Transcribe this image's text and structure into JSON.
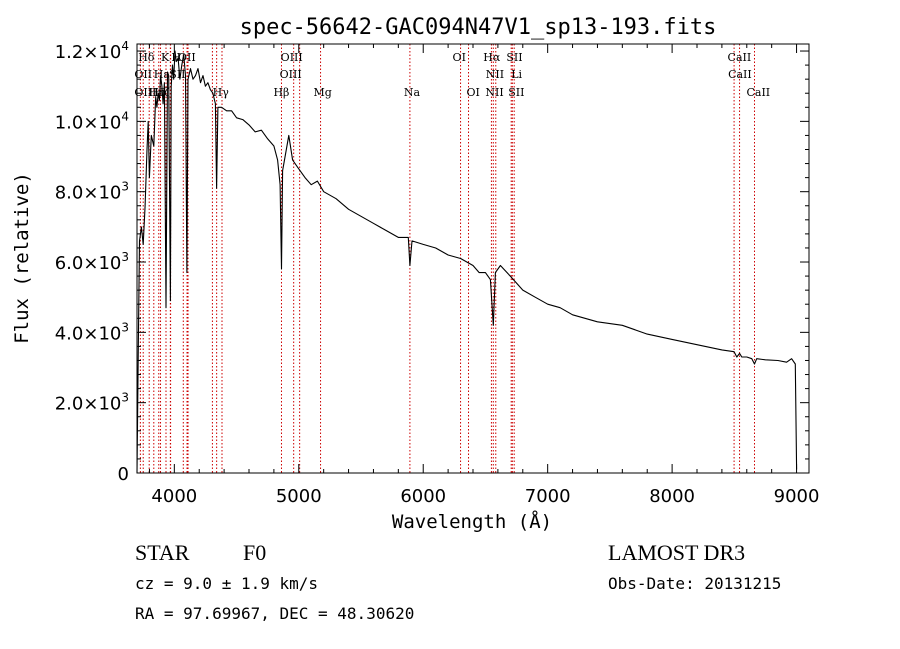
{
  "chart_data": {
    "type": "line",
    "title": "spec-56642-GAC094N47V1_sp13-193.fits",
    "xlabel": "Wavelength (Å)",
    "ylabel": "Flux (relative)",
    "xlim": [
      3700,
      9100
    ],
    "ylim": [
      0,
      12200
    ],
    "x_ticks": [
      4000,
      5000,
      6000,
      7000,
      8000,
      9000
    ],
    "x_tick_labels": [
      "4000",
      "5000",
      "6000",
      "7000",
      "8000",
      "9000"
    ],
    "y_ticks": [
      {
        "value": 0,
        "mantissa": "0",
        "exponent": ""
      },
      {
        "value": 2000,
        "mantissa": "2.0×10",
        "exponent": "3"
      },
      {
        "value": 4000,
        "mantissa": "4.0×10",
        "exponent": "3"
      },
      {
        "value": 6000,
        "mantissa": "6.0×10",
        "exponent": "3"
      },
      {
        "value": 8000,
        "mantissa": "8.0×10",
        "exponent": "3"
      },
      {
        "value": 10000,
        "mantissa": "1.0×10",
        "exponent": "4"
      },
      {
        "value": 12000,
        "mantissa": "1.2×10",
        "exponent": "4"
      }
    ],
    "series": [
      {
        "name": "spectrum",
        "x": [
          3700,
          3710,
          3720,
          3735,
          3750,
          3765,
          3780,
          3790,
          3800,
          3815,
          3835,
          3850,
          3860,
          3870,
          3880,
          3890,
          3900,
          3910,
          3920,
          3933,
          3945,
          3955,
          3968,
          3975,
          3985,
          3995,
          4005,
          4015,
          4030,
          4045,
          4060,
          4075,
          4090,
          4101,
          4110,
          4130,
          4150,
          4170,
          4190,
          4210,
          4230,
          4250,
          4270,
          4290,
          4310,
          4330,
          4340,
          4350,
          4380,
          4420,
          4460,
          4500,
          4550,
          4600,
          4650,
          4700,
          4750,
          4800,
          4830,
          4850,
          4861,
          4870,
          4890,
          4920,
          4950,
          4990,
          5050,
          5100,
          5150,
          5200,
          5250,
          5300,
          5400,
          5500,
          5600,
          5700,
          5800,
          5880,
          5893,
          5910,
          6000,
          6100,
          6200,
          6300,
          6400,
          6450,
          6500,
          6540,
          6563,
          6580,
          6620,
          6700,
          6800,
          6900,
          7000,
          7100,
          7200,
          7400,
          7600,
          7800,
          8000,
          8200,
          8400,
          8498,
          8520,
          8542,
          8560,
          8600,
          8640,
          8662,
          8680,
          8750,
          8850,
          8920,
          8960,
          8990,
          9000
        ],
        "values": [
          5,
          3300,
          6600,
          7000,
          6500,
          7600,
          9200,
          10000,
          8400,
          9600,
          9300,
          10700,
          10400,
          10800,
          10600,
          11300,
          11000,
          10500,
          11100,
          4700,
          11400,
          11300,
          4900,
          11000,
          11600,
          11200,
          12000,
          11700,
          11800,
          11200,
          11600,
          11900,
          11300,
          5700,
          11200,
          11500,
          11200,
          11300,
          11500,
          11100,
          11300,
          11000,
          11100,
          10900,
          10800,
          10500,
          8100,
          10400,
          10400,
          10300,
          10300,
          10100,
          10050,
          9900,
          9700,
          9750,
          9500,
          9300,
          8900,
          8200,
          5800,
          8600,
          9000,
          9600,
          8900,
          8700,
          8400,
          8200,
          8300,
          8000,
          7900,
          7800,
          7500,
          7300,
          7100,
          6900,
          6700,
          6700,
          5900,
          6600,
          6500,
          6400,
          6200,
          6100,
          5900,
          5700,
          5700,
          5500,
          4200,
          5700,
          5900,
          5600,
          5200,
          5000,
          4800,
          4700,
          4500,
          4300,
          4200,
          3950,
          3800,
          3650,
          3500,
          3450,
          3300,
          3400,
          3300,
          3300,
          3250,
          3100,
          3250,
          3220,
          3200,
          3150,
          3250,
          3100,
          100
        ]
      }
    ],
    "lines": [
      {
        "name": "Hδ",
        "wave": 3750,
        "row": 0,
        "dx": -5
      },
      {
        "name": "K",
        "wave": 3933,
        "row": 0,
        "dx": -5
      },
      {
        "name": "H",
        "wave": 3968,
        "row": 0,
        "dx": 1
      },
      {
        "name": "OII",
        "wave": 4110,
        "row": 0,
        "dx": -10
      },
      {
        "name": "OIII",
        "wave": 4959,
        "row": 0,
        "dx": -13
      },
      {
        "name": "OI",
        "wave": 6300,
        "row": 0,
        "dx": -8
      },
      {
        "name": "Hα",
        "wave": 6563,
        "row": 0,
        "dx": -10
      },
      {
        "name": "SII",
        "wave": 6716,
        "row": 0,
        "dx": -6
      },
      {
        "name": "CaII",
        "wave": 8542,
        "row": 0,
        "dx": -12
      },
      {
        "name": "OII",
        "wave": 3727,
        "row": 1,
        "dx": -6
      },
      {
        "name": "Hε",
        "wave": 3875,
        "row": 1,
        "dx": -5
      },
      {
        "name": "SII",
        "wave": 4072,
        "row": 1,
        "dx": -14
      },
      {
        "name": "OIII",
        "wave": 5007,
        "row": 1,
        "dx": -20
      },
      {
        "name": "NII",
        "wave": 6583,
        "row": 1,
        "dx": -10
      },
      {
        "name": "Li",
        "wave": 6707,
        "row": 1,
        "dx": 0
      },
      {
        "name": "CaII",
        "wave": 8498,
        "row": 1,
        "dx": -6
      },
      {
        "name": "OIII",
        "wave": 3727,
        "row": 2,
        "dx": -6
      },
      {
        "name": "Hη",
        "wave": 3835,
        "row": 2,
        "dx": -5
      },
      {
        "name": "Hζ",
        "wave": 3889,
        "row": 2,
        "dx": -6
      },
      {
        "name": "Hγ",
        "wave": 4340,
        "row": 2,
        "dx": -4
      },
      {
        "name": "Hβ",
        "wave": 4861,
        "row": 2,
        "dx": -8
      },
      {
        "name": "Mg",
        "wave": 5175,
        "row": 2,
        "dx": -7
      },
      {
        "name": "Na",
        "wave": 5893,
        "row": 2,
        "dx": -6
      },
      {
        "name": "OI",
        "wave": 6364,
        "row": 2,
        "dx": -2
      },
      {
        "name": "NII",
        "wave": 6548,
        "row": 2,
        "dx": -6
      },
      {
        "name": "SII",
        "wave": 6731,
        "row": 2,
        "dx": -6
      },
      {
        "name": "CaII",
        "wave": 8662,
        "row": 2,
        "dx": -8
      }
    ],
    "extra_lines": [
      3798,
      3970,
      4102,
      4306,
      4383
    ]
  },
  "info": {
    "class": "STAR",
    "subclass": "F0",
    "survey": "LAMOST DR3",
    "redshift": "cz = 9.0 ± 1.9 km/s",
    "obs_date": "Obs-Date: 20131215",
    "coords": "RA =  97.69967, DEC =  48.30620"
  },
  "colors": {
    "line_marker": "#cc0000",
    "spectrum": "#000000"
  }
}
